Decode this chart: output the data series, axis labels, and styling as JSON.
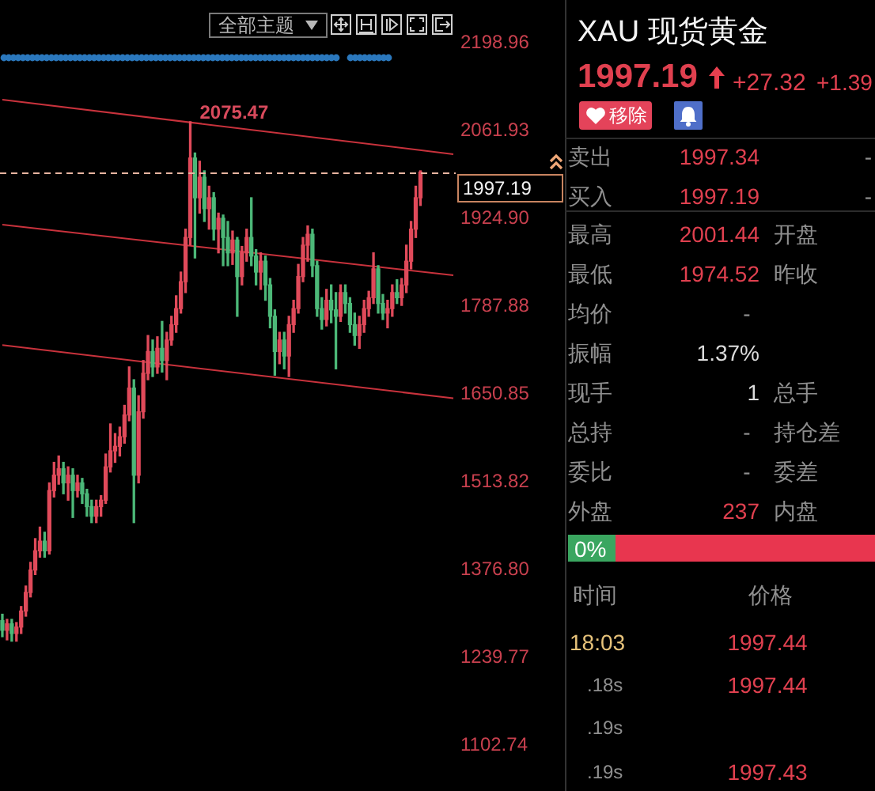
{
  "chart_data": [
    {
      "type": "candlestick",
      "categories": [
        null,
        null,
        null,
        null,
        null,
        null,
        null,
        null,
        null,
        null,
        null,
        null,
        null,
        null,
        null,
        null,
        null,
        null,
        null,
        null,
        null,
        null,
        null,
        null,
        null,
        null,
        null,
        null,
        null,
        null,
        null,
        null,
        null,
        null,
        null,
        null,
        null,
        null,
        null,
        null,
        null,
        null,
        null,
        null,
        null,
        null,
        null,
        null,
        null,
        null,
        null,
        null,
        null,
        null,
        null,
        null,
        null,
        null,
        null,
        null,
        null,
        null,
        null,
        null,
        null,
        null,
        null,
        null,
        null,
        null,
        null,
        null,
        null,
        null,
        null,
        null,
        null,
        null,
        null,
        null,
        null,
        null,
        null,
        null,
        null,
        null,
        null,
        null,
        null,
        null,
        null,
        null,
        null,
        null,
        null,
        null,
        null
      ],
      "ohlc": [
        [
          1297,
          1307,
          1272,
          1282
        ],
        [
          1282,
          1299,
          1267,
          1292
        ],
        [
          1292,
          1299,
          1265,
          1277
        ],
        [
          1277,
          1294,
          1265,
          1287
        ],
        [
          1287,
          1319,
          1277,
          1312
        ],
        [
          1312,
          1351,
          1304,
          1341
        ],
        [
          1341,
          1388,
          1334,
          1376
        ],
        [
          1376,
          1425,
          1369,
          1406
        ],
        [
          1406,
          1443,
          1396,
          1421
        ],
        [
          1421,
          1435,
          1396,
          1406
        ],
        [
          1406,
          1512,
          1401,
          1500
        ],
        [
          1500,
          1544,
          1490,
          1524
        ],
        [
          1524,
          1554,
          1510,
          1534
        ],
        [
          1534,
          1544,
          1495,
          1512
        ],
        [
          1512,
          1537,
          1485,
          1524
        ],
        [
          1524,
          1534,
          1458,
          1500
        ],
        [
          1500,
          1524,
          1490,
          1512
        ],
        [
          1512,
          1519,
          1480,
          1495
        ],
        [
          1495,
          1502,
          1460,
          1475
        ],
        [
          1475,
          1485,
          1450,
          1460
        ],
        [
          1460,
          1485,
          1450,
          1475
        ],
        [
          1475,
          1492,
          1460,
          1485
        ],
        [
          1485,
          1557,
          1480,
          1537
        ],
        [
          1537,
          1604,
          1529,
          1562
        ],
        [
          1562,
          1589,
          1544,
          1569
        ],
        [
          1569,
          1599,
          1554,
          1584
        ],
        [
          1584,
          1633,
          1574,
          1618
        ],
        [
          1618,
          1693,
          1609,
          1660
        ],
        [
          1660,
          1673,
          1450,
          1524
        ],
        [
          1524,
          1648,
          1512,
          1623
        ],
        [
          1623,
          1703,
          1613,
          1683
        ],
        [
          1683,
          1742,
          1673,
          1717
        ],
        [
          1717,
          1735,
          1678,
          1693
        ],
        [
          1693,
          1740,
          1683,
          1722
        ],
        [
          1722,
          1764,
          1685,
          1703
        ],
        [
          1703,
          1747,
          1673,
          1735
        ],
        [
          1735,
          1772,
          1727,
          1759
        ],
        [
          1759,
          1804,
          1747,
          1784
        ],
        [
          1784,
          1841,
          1777,
          1826
        ],
        [
          1826,
          1908,
          1809,
          1895
        ],
        [
          1895,
          2075.47,
          1883,
          2019
        ],
        [
          2019,
          2027,
          1863,
          1957
        ],
        [
          1957,
          2014,
          1933,
          1989
        ],
        [
          1989,
          1999,
          1920,
          1940
        ],
        [
          1940,
          1975,
          1908,
          1957
        ],
        [
          1957,
          1965,
          1891,
          1908
        ],
        [
          1908,
          1933,
          1871,
          1925
        ],
        [
          1925,
          1930,
          1851,
          1895
        ],
        [
          1895,
          1920,
          1851,
          1871
        ],
        [
          1871,
          1905,
          1853,
          1891
        ],
        [
          1891,
          1895,
          1772,
          1834
        ],
        [
          1834,
          1881,
          1821,
          1871
        ],
        [
          1871,
          1908,
          1858,
          1895
        ],
        [
          1895,
          1957,
          1851,
          1866
        ],
        [
          1866,
          1876,
          1821,
          1841
        ],
        [
          1841,
          1871,
          1814,
          1858
        ],
        [
          1858,
          1866,
          1797,
          1821
        ],
        [
          1821,
          1831,
          1754,
          1772
        ],
        [
          1772,
          1782,
          1680,
          1717
        ],
        [
          1717,
          1747,
          1698,
          1735
        ],
        [
          1735,
          1747,
          1690,
          1710
        ],
        [
          1710,
          1772,
          1678,
          1759
        ],
        [
          1759,
          1797,
          1747,
          1784
        ],
        [
          1784,
          1853,
          1777,
          1834
        ],
        [
          1834,
          1895,
          1826,
          1883
        ],
        [
          1883,
          1913,
          1858,
          1900
        ],
        [
          1900,
          1908,
          1834,
          1851
        ],
        [
          1851,
          1858,
          1772,
          1784
        ],
        [
          1784,
          1801,
          1752,
          1767
        ],
        [
          1767,
          1814,
          1757,
          1797
        ],
        [
          1797,
          1821,
          1762,
          1782
        ],
        [
          1782,
          1809,
          1690,
          1772
        ],
        [
          1772,
          1821,
          1764,
          1809
        ],
        [
          1809,
          1821,
          1777,
          1792
        ],
        [
          1792,
          1801,
          1747,
          1759
        ],
        [
          1759,
          1777,
          1727,
          1742
        ],
        [
          1742,
          1772,
          1722,
          1759
        ],
        [
          1759,
          1797,
          1747,
          1784
        ],
        [
          1784,
          1811,
          1772,
          1801
        ],
        [
          1801,
          1871,
          1792,
          1846
        ],
        [
          1846,
          1851,
          1777,
          1792
        ],
        [
          1792,
          1806,
          1767,
          1777
        ],
        [
          1777,
          1797,
          1754,
          1784
        ],
        [
          1784,
          1821,
          1772,
          1809
        ],
        [
          1809,
          1829,
          1792,
          1801
        ],
        [
          1801,
          1831,
          1789,
          1821
        ],
        [
          1821,
          1883,
          1809,
          1858
        ],
        [
          1858,
          1920,
          1846,
          1908
        ],
        [
          1908,
          1975,
          1895,
          1957
        ],
        [
          1957,
          1999,
          1945,
          1997
        ],
        null,
        null,
        null,
        null,
        null,
        null,
        null
      ],
      "colors": [
        "#4cb878",
        "#e04a5a",
        "#4cb878",
        "#e04a5a",
        "#e04a5a",
        "#e04a5a",
        "#e04a5a",
        "#e04a5a",
        "#e04a5a",
        "#4cb878",
        "#e04a5a",
        "#e04a5a",
        "#e04a5a",
        "#4cb878",
        "#e04a5a",
        "#4cb878",
        "#e04a5a",
        "#4cb878",
        "#4cb878",
        "#4cb878",
        "#e04a5a",
        "#e04a5a",
        "#e04a5a",
        "#e04a5a",
        "#e04a5a",
        "#e04a5a",
        "#e04a5a",
        "#e04a5a",
        "#4cb878",
        "#e04a5a",
        "#e04a5a",
        "#e04a5a",
        "#4cb878",
        "#e04a5a",
        "#4cb878",
        "#e04a5a",
        "#e04a5a",
        "#e04a5a",
        "#e04a5a",
        "#e04a5a",
        "#e04a5a",
        "#4cb878",
        "#e04a5a",
        "#4cb878",
        "#e04a5a",
        "#4cb878",
        "#e04a5a",
        "#4cb878",
        "#4cb878",
        "#e04a5a",
        "#4cb878",
        "#e04a5a",
        "#e04a5a",
        "#4cb878",
        "#4cb878",
        "#e04a5a",
        "#4cb878",
        "#4cb878",
        "#4cb878",
        "#e04a5a",
        "#4cb878",
        "#e04a5a",
        "#e04a5a",
        "#e04a5a",
        "#e04a5a",
        "#e04a5a",
        "#4cb878",
        "#4cb878",
        "#4cb878",
        "#e04a5a",
        "#4cb878",
        "#4cb878",
        "#e04a5a",
        "#4cb878",
        "#4cb878",
        "#4cb878",
        "#e04a5a",
        "#e04a5a",
        "#e04a5a",
        "#e04a5a",
        "#4cb878",
        "#4cb878",
        "#e04a5a",
        "#e04a5a",
        "#4cb878",
        "#e04a5a",
        "#e04a5a",
        "#e04a5a",
        "#e04a5a",
        "#e04a5a",
        null,
        null,
        null,
        null,
        null,
        null,
        null
      ],
      "series": [
        {
          "type": "line",
          "color": "#c8323c",
          "values": [
            2110,
            null,
            null,
            null,
            null,
            null,
            null,
            null,
            null,
            null,
            null,
            null,
            null,
            null,
            null,
            null,
            null,
            null,
            null,
            null,
            null,
            null,
            null,
            null,
            null,
            null,
            null,
            null,
            null,
            null,
            null,
            null,
            null,
            null,
            null,
            null,
            null,
            null,
            null,
            null,
            null,
            null,
            null,
            null,
            null,
            null,
            null,
            null,
            null,
            null,
            null,
            null,
            null,
            null,
            null,
            null,
            null,
            null,
            null,
            null,
            null,
            null,
            null,
            null,
            null,
            null,
            null,
            null,
            null,
            null,
            null,
            null,
            null,
            null,
            null,
            null,
            null,
            null,
            null,
            null,
            null,
            null,
            null,
            null,
            null,
            null,
            null,
            null,
            null,
            null,
            null,
            null,
            null,
            null,
            null,
            null,
            2025
          ]
        },
        {
          "type": "line",
          "color": "#c8323c",
          "values": [
            1915,
            null,
            null,
            null,
            null,
            null,
            null,
            null,
            null,
            null,
            null,
            null,
            null,
            null,
            null,
            null,
            null,
            null,
            null,
            null,
            null,
            null,
            null,
            null,
            null,
            null,
            null,
            null,
            null,
            null,
            null,
            null,
            null,
            null,
            null,
            null,
            null,
            null,
            null,
            null,
            null,
            null,
            null,
            null,
            null,
            null,
            null,
            null,
            null,
            null,
            null,
            null,
            null,
            null,
            null,
            null,
            null,
            null,
            null,
            null,
            null,
            null,
            null,
            null,
            null,
            null,
            null,
            null,
            null,
            null,
            null,
            null,
            null,
            null,
            null,
            null,
            null,
            null,
            null,
            null,
            null,
            null,
            null,
            null,
            null,
            null,
            null,
            null,
            null,
            null,
            null,
            null,
            null,
            null,
            null,
            null,
            1836
          ]
        },
        {
          "type": "line",
          "color": "#c8323c",
          "values": [
            1727,
            null,
            null,
            null,
            null,
            null,
            null,
            null,
            null,
            null,
            null,
            null,
            null,
            null,
            null,
            null,
            null,
            null,
            null,
            null,
            null,
            null,
            null,
            null,
            null,
            null,
            null,
            null,
            null,
            null,
            null,
            null,
            null,
            null,
            null,
            null,
            null,
            null,
            null,
            null,
            null,
            null,
            null,
            null,
            null,
            null,
            null,
            null,
            null,
            null,
            null,
            null,
            null,
            null,
            null,
            null,
            null,
            null,
            null,
            null,
            null,
            null,
            null,
            null,
            null,
            null,
            null,
            null,
            null,
            null,
            null,
            null,
            null,
            null,
            null,
            null,
            null,
            null,
            null,
            null,
            null,
            null,
            null,
            null,
            null,
            null,
            null,
            null,
            null,
            null,
            null,
            null,
            null,
            null,
            null,
            null,
            1644
          ]
        }
      ],
      "ylim": [
        1102.74,
        2198.96
      ],
      "yticks": [
        1102.74,
        1239.77,
        {
          "value": 1376.8,
          "label": "1376.80"
        },
        1513.82,
        1650.85,
        1787.88,
        {
          "value": 1924.9,
          "label": "1924.90"
        },
        2061.93,
        2198.96
      ],
      "tick_labels": "y",
      "ref_lines": [
        {
          "axis": "y",
          "value": 1997.19,
          "label": "1997.19",
          "color": "#e8b4a0",
          "line_style": "dashed"
        }
      ],
      "annotations": [
        {
          "text": "2075.47",
          "y": 2075.47
        },
        "全部主题"
      ]
    },
    {
      "type": "other",
      "title": "XAU 现货黄金",
      "annotations": [
        "1997.19",
        "+27.32",
        "+1.39",
        "移除",
        "卖出",
        "1997.34",
        "-",
        "买入",
        "1997.19",
        "-",
        "最高",
        "2001.44",
        "开盘",
        "最低",
        "1974.52",
        "昨收",
        "均价",
        "-",
        "振幅",
        "1.37%",
        "现手",
        "1",
        "总手",
        "总持",
        "-",
        "持仓差",
        "委比",
        "-",
        "委差",
        "外盘",
        "237",
        "内盘",
        "0%",
        "时间",
        "价格",
        "18:03",
        "1997.44",
        ".18s",
        "1997.44",
        ".19s",
        ".19s",
        "1997.43"
      ]
    }
  ]
}
